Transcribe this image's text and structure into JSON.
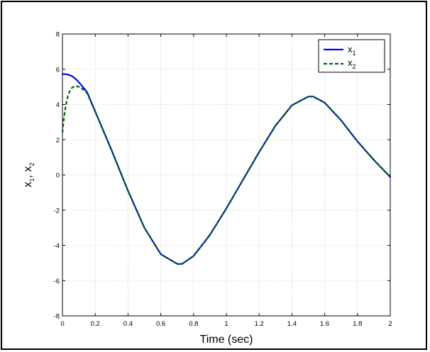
{
  "chart_data": {
    "type": "line",
    "xlabel": "Time (sec)",
    "ylabel": {
      "v1": "x",
      "s1": "1",
      "sep": ", ",
      "v2": "x",
      "s2": "2"
    },
    "xlim": [
      0,
      2
    ],
    "ylim": [
      -8,
      8
    ],
    "xticks": [
      0,
      0.2,
      0.4,
      0.6,
      0.8,
      1,
      1.2,
      1.4,
      1.6,
      1.8,
      2
    ],
    "yticks": [
      -8,
      -6,
      -4,
      -2,
      0,
      2,
      4,
      6,
      8
    ],
    "grid": true,
    "legend_position": "top-right",
    "series": [
      {
        "name": "x",
        "name_sub": "1",
        "color": "#0000ff",
        "style": "solid",
        "x": [
          0,
          0.02,
          0.04,
          0.06,
          0.08,
          0.1,
          0.12,
          0.15,
          0.2,
          0.3,
          0.4,
          0.5,
          0.6,
          0.7,
          0.73,
          0.8,
          0.9,
          1.0,
          1.1,
          1.2,
          1.3,
          1.4,
          1.5,
          1.53,
          1.6,
          1.7,
          1.8,
          1.9,
          2.0
        ],
        "y": [
          5.72,
          5.72,
          5.68,
          5.6,
          5.45,
          5.27,
          5.05,
          4.7,
          3.6,
          1.4,
          -0.9,
          -3.0,
          -4.5,
          -5.05,
          -5.05,
          -4.6,
          -3.4,
          -1.9,
          -0.3,
          1.3,
          2.8,
          3.95,
          4.45,
          4.45,
          4.1,
          3.1,
          1.9,
          0.85,
          -0.12
        ]
      },
      {
        "name": "x",
        "name_sub": "2",
        "color": "#006400",
        "style": "dashed",
        "x": [
          0,
          0.01,
          0.02,
          0.03,
          0.04,
          0.05,
          0.06,
          0.08,
          0.1,
          0.12,
          0.15,
          0.2,
          0.3,
          0.4,
          0.5,
          0.6,
          0.7,
          0.73,
          0.8,
          0.9,
          1.0,
          1.1,
          1.2,
          1.3,
          1.4,
          1.5,
          1.53,
          1.6,
          1.7,
          1.8,
          1.9,
          2.0
        ],
        "y": [
          2.4,
          3.3,
          3.9,
          4.35,
          4.65,
          4.85,
          4.97,
          5.05,
          5.0,
          4.9,
          4.65,
          3.6,
          1.4,
          -0.9,
          -3.0,
          -4.5,
          -5.05,
          -5.05,
          -4.6,
          -3.4,
          -1.9,
          -0.3,
          1.3,
          2.8,
          3.95,
          4.45,
          4.45,
          4.1,
          3.1,
          1.9,
          0.85,
          -0.12
        ]
      }
    ]
  }
}
